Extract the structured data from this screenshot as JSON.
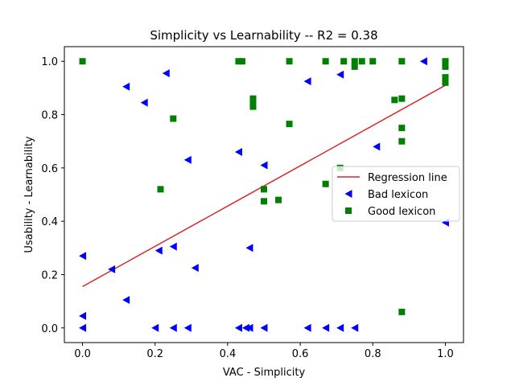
{
  "chart_data": {
    "type": "scatter",
    "title": "Simplicity  vs  Learnability -- R2 = 0.38",
    "xlabel": "VAC - Simplicity",
    "ylabel": "Usability - Learnability",
    "xlim": [
      -0.05,
      1.05
    ],
    "ylim": [
      -0.055,
      1.055
    ],
    "xticks": [
      "0.0",
      "0.2",
      "0.4",
      "0.6",
      "0.8",
      "1.0"
    ],
    "yticks": [
      "0.0",
      "0.2",
      "0.4",
      "0.6",
      "0.8",
      "1.0"
    ],
    "grid": false,
    "legend_position": "center-right",
    "legend": [
      "Regression line",
      "Bad lexicon",
      "Good lexicon"
    ],
    "regression_line": {
      "name": "Regression line",
      "color": "#d62728",
      "points": [
        [
          0.0,
          0.155
        ],
        [
          1.0,
          0.91
        ]
      ]
    },
    "series": [
      {
        "name": "Bad lexicon",
        "marker": "triangle-left",
        "color": "#0000ff",
        "points": [
          [
            0.0,
            0.0
          ],
          [
            0.0,
            0.045
          ],
          [
            0.0,
            0.27
          ],
          [
            0.08,
            0.22
          ],
          [
            0.12,
            0.105
          ],
          [
            0.12,
            0.905
          ],
          [
            0.17,
            0.845
          ],
          [
            0.2,
            0.0
          ],
          [
            0.21,
            0.29
          ],
          [
            0.23,
            0.955
          ],
          [
            0.25,
            0.0
          ],
          [
            0.25,
            0.305
          ],
          [
            0.29,
            0.0
          ],
          [
            0.29,
            0.63
          ],
          [
            0.31,
            0.225
          ],
          [
            0.43,
            0.0
          ],
          [
            0.43,
            0.66
          ],
          [
            0.45,
            0.0
          ],
          [
            0.46,
            0.3
          ],
          [
            0.46,
            0.0
          ],
          [
            0.5,
            0.0
          ],
          [
            0.5,
            0.61
          ],
          [
            0.62,
            0.0
          ],
          [
            0.62,
            0.925
          ],
          [
            0.67,
            0.0
          ],
          [
            0.71,
            0.0
          ],
          [
            0.71,
            0.95
          ],
          [
            0.75,
            0.0
          ],
          [
            0.81,
            0.68
          ],
          [
            0.94,
            1.0
          ],
          [
            1.0,
            0.395
          ]
        ]
      },
      {
        "name": "Good lexicon",
        "marker": "square",
        "color": "#008000",
        "points": [
          [
            0.0,
            1.0
          ],
          [
            0.215,
            0.52
          ],
          [
            0.25,
            0.785
          ],
          [
            0.43,
            1.0
          ],
          [
            0.44,
            1.0
          ],
          [
            0.47,
            0.86
          ],
          [
            0.47,
            0.85
          ],
          [
            0.47,
            0.83
          ],
          [
            0.5,
            0.52
          ],
          [
            0.5,
            0.475
          ],
          [
            0.54,
            0.48
          ],
          [
            0.57,
            1.0
          ],
          [
            0.57,
            0.765
          ],
          [
            0.67,
            1.0
          ],
          [
            0.67,
            0.54
          ],
          [
            0.71,
            0.6
          ],
          [
            0.72,
            1.0
          ],
          [
            0.75,
            1.0
          ],
          [
            0.75,
            0.98
          ],
          [
            0.77,
            1.0
          ],
          [
            0.8,
            1.0
          ],
          [
            0.86,
            0.855
          ],
          [
            0.88,
            1.0
          ],
          [
            0.88,
            0.86
          ],
          [
            0.88,
            0.75
          ],
          [
            0.88,
            0.7
          ],
          [
            0.88,
            0.06
          ],
          [
            1.0,
            1.0
          ],
          [
            1.0,
            0.995
          ],
          [
            1.0,
            0.98
          ],
          [
            1.0,
            0.94
          ],
          [
            1.0,
            0.92
          ]
        ]
      }
    ]
  }
}
